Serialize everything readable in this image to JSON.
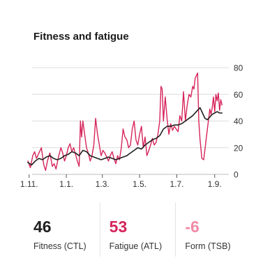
{
  "colors": {
    "fitness": "#1f1f1f",
    "fatigue": "#d6245a",
    "form": "#f08aa6",
    "grid": "#dcdcdc",
    "axis_text": "#333333"
  },
  "stats": [
    {
      "value": "46",
      "label": "Fitness (CTL)",
      "color": "#1f1f1f"
    },
    {
      "value": "53",
      "label": "Fatigue (ATL)",
      "color": "#d6245a"
    },
    {
      "value": "-6",
      "label": "Form (TSB)",
      "color": "#f08aa6"
    }
  ],
  "chart_data": {
    "type": "line",
    "title": "Fitness and fatigue",
    "xlabel": "",
    "ylabel": "",
    "x_ticks": [
      {
        "label": "1.11.",
        "x": 0
      },
      {
        "label": "1.1.",
        "x": 61
      },
      {
        "label": "1.3.",
        "x": 120
      },
      {
        "label": "1.5.",
        "x": 181
      },
      {
        "label": "1.7.",
        "x": 242
      },
      {
        "label": "1.9.",
        "x": 304
      }
    ],
    "xlim": [
      -2,
      318
    ],
    "ylim": [
      0,
      80
    ],
    "y_ticks": [
      0,
      20,
      40,
      60,
      80
    ],
    "y_axis_position": "right",
    "grid": "horizontal",
    "legend": "none",
    "series": [
      {
        "key": "fatigue",
        "color": "#d6245a",
        "x": [
          -2,
          2,
          6,
          9,
          12,
          16,
          20,
          24,
          27,
          30,
          34,
          38,
          41,
          44,
          48,
          52,
          55,
          58,
          61,
          64,
          67,
          70,
          73,
          76,
          79,
          82,
          84,
          86,
          88,
          91,
          94,
          97,
          100,
          103,
          106,
          109,
          112,
          115,
          118,
          121,
          124,
          127,
          130,
          133,
          136,
          139,
          142,
          145,
          148,
          151,
          154,
          157,
          160,
          163,
          166,
          169,
          172,
          175,
          178,
          181,
          184,
          187,
          190,
          193,
          196,
          199,
          202,
          205,
          208,
          211,
          214,
          216,
          218,
          220,
          223,
          226,
          229,
          232,
          235,
          238,
          241,
          244,
          247,
          250,
          253,
          256,
          259,
          262,
          265,
          268,
          270,
          272,
          274,
          276,
          278,
          280,
          283,
          286,
          289,
          292,
          294,
          296,
          298,
          300,
          302,
          304,
          306,
          308,
          310,
          312,
          314,
          316
        ],
        "y": [
          10,
          5,
          14,
          17,
          12,
          16,
          20,
          7,
          3,
          10,
          16,
          6,
          8,
          4,
          13,
          20,
          16,
          10,
          14,
          20,
          23,
          17,
          20,
          15,
          10,
          6,
          40,
          28,
          40,
          30,
          20,
          16,
          10,
          14,
          22,
          42,
          30,
          22,
          14,
          18,
          16,
          13,
          10,
          14,
          17,
          12,
          8,
          14,
          11,
          20,
          34,
          28,
          26,
          20,
          22,
          34,
          40,
          26,
          22,
          30,
          36,
          20,
          28,
          14,
          18,
          22,
          27,
          22,
          24,
          30,
          40,
          66,
          64,
          40,
          58,
          42,
          30,
          38,
          33,
          36,
          34,
          32,
          44,
          40,
          62,
          40,
          52,
          60,
          58,
          66,
          64,
          72,
          74,
          76,
          40,
          26,
          12,
          11,
          22,
          34,
          41,
          49,
          45,
          50,
          58,
          47,
          60,
          55,
          61,
          48,
          56,
          52
        ]
      },
      {
        "key": "fitness",
        "color": "#1f1f1f",
        "x": [
          -2,
          4,
          10,
          16,
          22,
          28,
          34,
          40,
          46,
          52,
          58,
          64,
          70,
          76,
          82,
          88,
          94,
          100,
          106,
          112,
          118,
          124,
          130,
          136,
          142,
          148,
          154,
          160,
          166,
          172,
          178,
          184,
          190,
          196,
          202,
          208,
          214,
          220,
          226,
          232,
          238,
          244,
          250,
          256,
          262,
          268,
          274,
          280,
          284,
          288,
          292,
          296,
          300,
          304,
          308,
          312,
          316
        ],
        "y": [
          9,
          7,
          10,
          12,
          11,
          13,
          14,
          12,
          11,
          12,
          14,
          15,
          17,
          16,
          14,
          18,
          17,
          14,
          13,
          12,
          11,
          12,
          13,
          12,
          11,
          12,
          13,
          14,
          16,
          18,
          20,
          19,
          22,
          24,
          26,
          27,
          29,
          34,
          36,
          36,
          37,
          37,
          38,
          40,
          42,
          44,
          47,
          50,
          46,
          42,
          41,
          43,
          45,
          46,
          47,
          46,
          46
        ]
      }
    ]
  }
}
